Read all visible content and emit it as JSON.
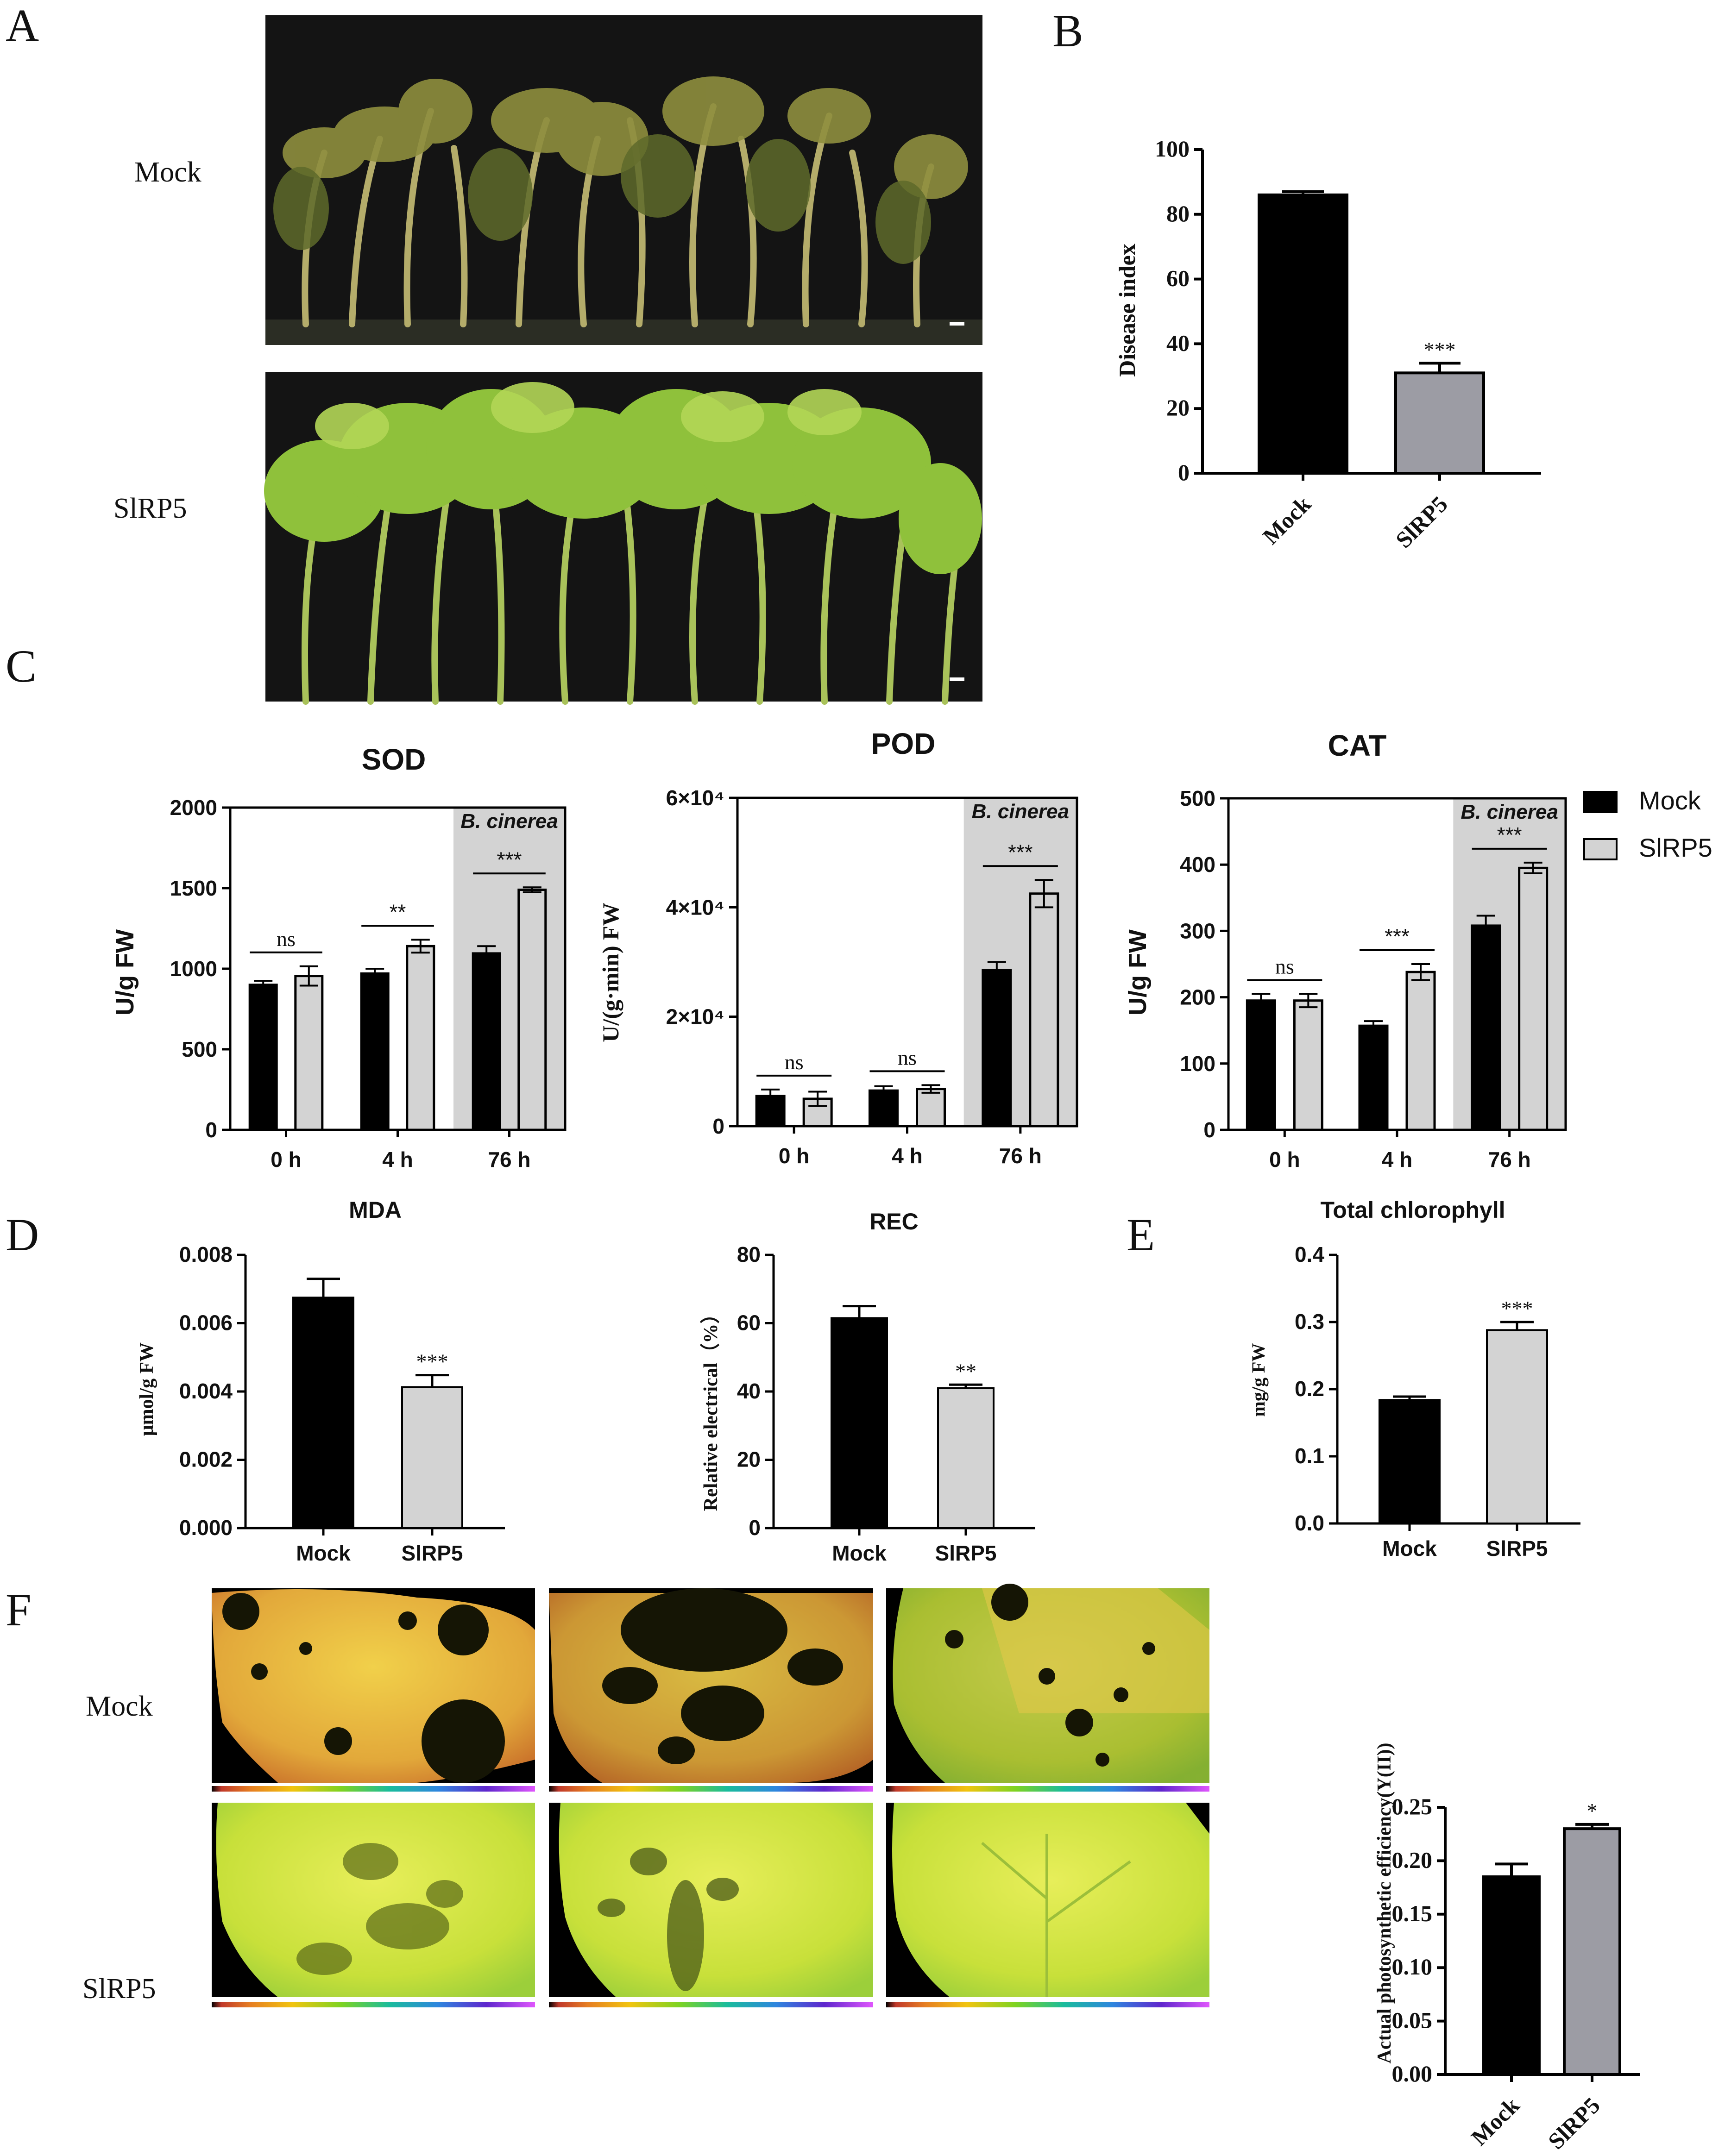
{
  "panels": {
    "A": "A",
    "B": "B",
    "C": "C",
    "D": "D",
    "E": "E",
    "F": "F"
  },
  "photo_rows": {
    "mock_label": "Mock",
    "slrp5_label": "SlRP5"
  },
  "colors": {
    "mock": "#000000",
    "slrp5_light": "#d3d3d3",
    "slrp5_dark": "#9c9ca4",
    "cinerea_shade": "#d3d3d3",
    "plant_dark_bg": "#141414",
    "leaf_mock": "#e2ad3e",
    "leaf_slrp5": "#c9e23c"
  },
  "chart_data": [
    {
      "id": "B",
      "type": "bar",
      "categories": [
        "Mock",
        "SlRP5"
      ],
      "values": [
        86,
        31
      ],
      "errors": [
        1,
        3
      ],
      "ylabel": "Disease index",
      "ylim": [
        0,
        100
      ],
      "yticks": [
        "0",
        "20",
        "40",
        "60",
        "80",
        "100"
      ],
      "annotations": [
        {
          "category": "SlRP5",
          "text": "***"
        }
      ]
    },
    {
      "id": "C-SOD",
      "type": "bar",
      "title": "SOD",
      "ylabel": "U/g FW",
      "categories": [
        "0 h",
        "4 h",
        "76 h"
      ],
      "ylim": [
        0,
        2000
      ],
      "yticks": [
        "0",
        "500",
        "1000",
        "1500",
        "2000"
      ],
      "series": [
        {
          "name": "Mock",
          "values": [
            900,
            970,
            1095
          ],
          "errors": [
            25,
            30,
            45
          ]
        },
        {
          "name": "SlRP5",
          "values": [
            955,
            1140,
            1490
          ],
          "errors": [
            60,
            40,
            15
          ]
        }
      ],
      "significance": [
        "ns",
        "**",
        "***"
      ],
      "shaded_label": "B. cinerea"
    },
    {
      "id": "C-POD",
      "type": "bar",
      "title": "POD",
      "ylabel": "U/(g·min) FW",
      "categories": [
        "0 h",
        "4 h",
        "76 h"
      ],
      "ylim": [
        0,
        60000
      ],
      "yticks": [
        "0",
        "2×10⁴",
        "4×10⁴",
        "6×10⁴"
      ],
      "series": [
        {
          "name": "Mock",
          "values": [
            5500,
            6500,
            28500
          ],
          "errors": [
            1200,
            800,
            1500
          ]
        },
        {
          "name": "SlRP5",
          "values": [
            5000,
            6800,
            42500
          ],
          "errors": [
            1300,
            700,
            2500
          ]
        }
      ],
      "significance": [
        "ns",
        "ns",
        "***"
      ],
      "shaded_label": "B. cinerea"
    },
    {
      "id": "C-CAT",
      "type": "bar",
      "title": "CAT",
      "ylabel": "U/g FW",
      "categories": [
        "0 h",
        "4 h",
        "76 h"
      ],
      "ylim": [
        0,
        500
      ],
      "yticks": [
        "0",
        "100",
        "200",
        "300",
        "400",
        "500"
      ],
      "series": [
        {
          "name": "Mock",
          "values": [
            195,
            157,
            308
          ],
          "errors": [
            10,
            7,
            15
          ]
        },
        {
          "name": "SlRP5",
          "values": [
            195,
            238,
            395
          ],
          "errors": [
            10,
            12,
            8
          ]
        }
      ],
      "significance": [
        "ns",
        "***",
        "***"
      ],
      "shaded_label": "B. cinerea",
      "legend": [
        "Mock",
        "SlRP5"
      ]
    },
    {
      "id": "D-MDA",
      "type": "bar",
      "title": "MDA",
      "ylabel": "μmol/g FW",
      "categories": [
        "Mock",
        "SlRP5"
      ],
      "values": [
        0.00675,
        0.00413
      ],
      "errors": [
        0.00055,
        0.00035
      ],
      "ylim": [
        0,
        0.008
      ],
      "yticks": [
        "0.000",
        "0.002",
        "0.004",
        "0.006",
        "0.008"
      ],
      "annotations": [
        {
          "category": "SlRP5",
          "text": "***"
        }
      ]
    },
    {
      "id": "D-REC",
      "type": "bar",
      "title": "REC",
      "ylabel": "Relative electrical（%）",
      "categories": [
        "Mock",
        "SlRP5"
      ],
      "values": [
        61.5,
        41
      ],
      "errors": [
        3.5,
        1
      ],
      "ylim": [
        0,
        80
      ],
      "yticks": [
        "0",
        "20",
        "40",
        "60",
        "80"
      ],
      "annotations": [
        {
          "category": "SlRP5",
          "text": "**"
        }
      ]
    },
    {
      "id": "E",
      "type": "bar",
      "title": "Total chlorophyll",
      "ylabel": "mg/g FW",
      "categories": [
        "Mock",
        "SlRP5"
      ],
      "values": [
        0.184,
        0.288
      ],
      "errors": [
        0.005,
        0.012
      ],
      "ylim": [
        0,
        0.4
      ],
      "yticks": [
        "0.0",
        "0.1",
        "0.2",
        "0.3",
        "0.4"
      ],
      "annotations": [
        {
          "category": "SlRP5",
          "text": "***"
        }
      ]
    },
    {
      "id": "F",
      "type": "bar",
      "ylabel": "Actual photosynthetic efficiency(Y(II))",
      "categories": [
        "Mock",
        "SlRP5"
      ],
      "values": [
        0.185,
        0.23
      ],
      "errors": [
        0.012,
        0.004
      ],
      "ylim": [
        0,
        0.25
      ],
      "yticks": [
        "0.00",
        "0.05",
        "0.10",
        "0.15",
        "0.20",
        "0.25"
      ],
      "annotations": [
        {
          "category": "SlRP5",
          "text": "*"
        }
      ]
    }
  ]
}
